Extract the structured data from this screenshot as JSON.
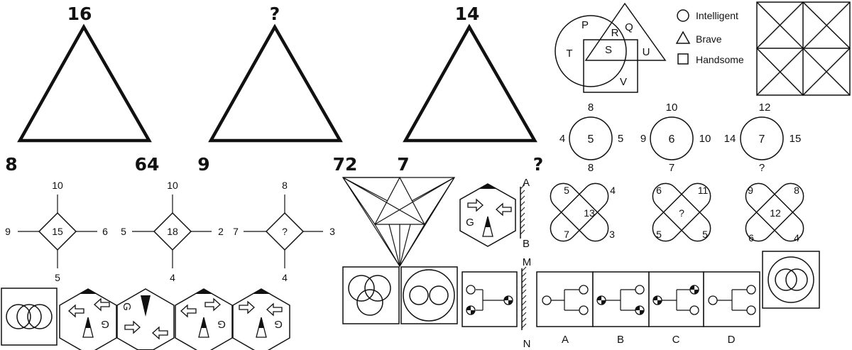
{
  "triangle_puzzle": {
    "t1": {
      "top": "16",
      "left": "8",
      "right": "64"
    },
    "t2": {
      "top": "?",
      "left": "9",
      "right": "72"
    },
    "t3": {
      "top": "14",
      "left": "7",
      "right": "?"
    }
  },
  "venn_puzzle": {
    "regions": [
      "P",
      "R",
      "Q",
      "T",
      "S",
      "U",
      "V"
    ],
    "legend": [
      {
        "shape": "circle",
        "label": "Intelligent"
      },
      {
        "shape": "triangle",
        "label": "Brave"
      },
      {
        "shape": "square",
        "label": "Handsome"
      }
    ]
  },
  "circle_puzzle": [
    {
      "top": "8",
      "left": "4",
      "center": "5",
      "right": "5",
      "bottom": "8"
    },
    {
      "top": "10",
      "left": "9",
      "center": "6",
      "right": "10",
      "bottom": "7"
    },
    {
      "top": "12",
      "left": "14",
      "center": "7",
      "right": "15",
      "bottom": "?"
    }
  ],
  "cross_puzzle": [
    {
      "tl": "5",
      "tr": "4",
      "center": "13",
      "bl": "7",
      "br": "3"
    },
    {
      "tl": "6",
      "tr": "11",
      "center": "?",
      "bl": "5",
      "br": "5"
    },
    {
      "tl": "9",
      "tr": "8",
      "center": "12",
      "bl": "6",
      "br": "4"
    }
  ],
  "diamond_puzzle": [
    {
      "top": "10",
      "left": "9",
      "center": "15",
      "right": "6",
      "bottom": "5"
    },
    {
      "top": "10",
      "left": "5",
      "center": "18",
      "right": "2",
      "bottom": "4"
    },
    {
      "top": "8",
      "left": "7",
      "center": "?",
      "right": "3",
      "bottom": "4"
    }
  ],
  "mirror_labels": {
    "top1": "A",
    "bottom1": "B",
    "top2": "M",
    "bottom2": "N"
  },
  "hexagon_glyph": "G",
  "answer_options": [
    "A",
    "B",
    "C",
    "D"
  ]
}
